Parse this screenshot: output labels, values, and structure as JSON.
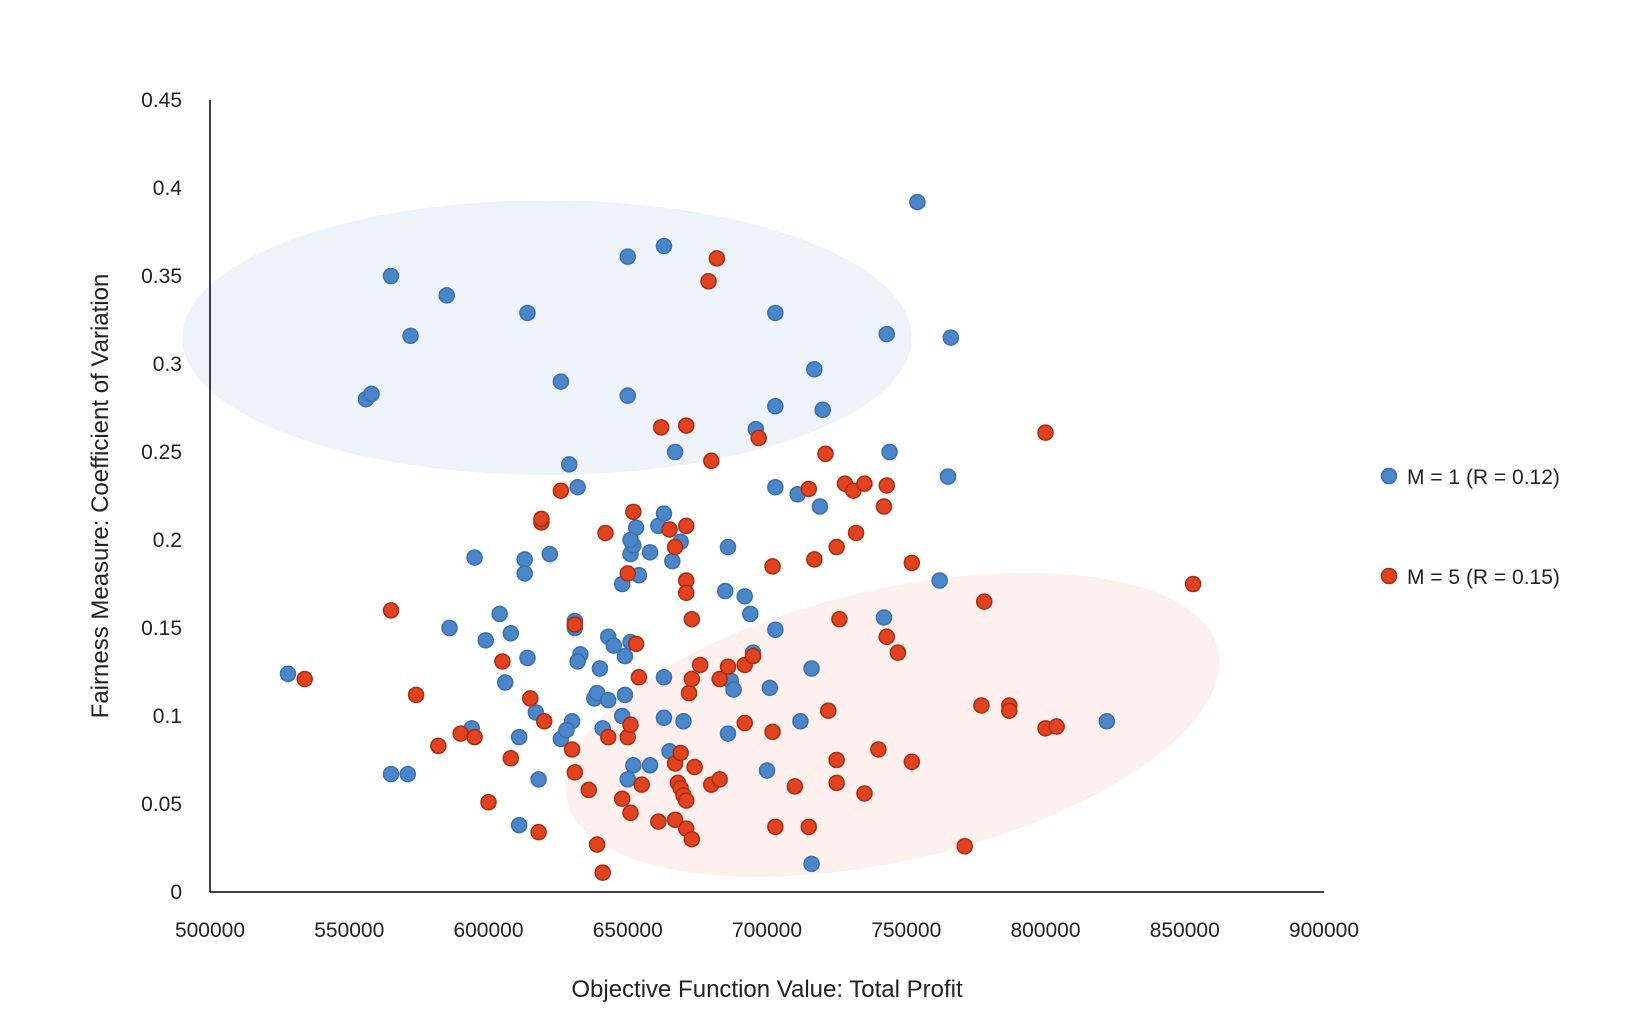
{
  "chart_data": {
    "type": "scatter",
    "title": "",
    "xlabel": "Objective Function Value: Total Profit",
    "ylabel": "Fairness Measure: Coefficient of Variation",
    "xlim": [
      500000,
      900000
    ],
    "ylim": [
      0,
      0.45
    ],
    "x_ticks": [
      500000,
      550000,
      600000,
      650000,
      700000,
      750000,
      800000,
      850000,
      900000
    ],
    "x_tick_labels": [
      "500000",
      "550000",
      "600000",
      "650000",
      "700000",
      "750000",
      "800000",
      "850000",
      "900000"
    ],
    "y_ticks": [
      0,
      0.05,
      0.1,
      0.15,
      0.2,
      0.25,
      0.3,
      0.35,
      0.4,
      0.45
    ],
    "y_tick_labels": [
      "0",
      "0.05",
      "0.1",
      "0.15",
      "0.2",
      "0.25",
      "0.3",
      "0.35",
      "0.4",
      "0.45"
    ],
    "grid": false,
    "legend_position": "right",
    "regions": [
      {
        "series": "M = 1 (R = 0.12)",
        "cx": 621000,
        "cy": 0.315,
        "rx": 131000,
        "ry": 0.078,
        "rotation_deg": 0,
        "color": "#EEF3F9"
      },
      {
        "series": "M = 5 (R = 0.15)",
        "cx": 745000,
        "cy": 0.095,
        "rx": 120000,
        "ry": 0.077,
        "rotation_deg": -13,
        "color": "#FDF0EF"
      }
    ],
    "series": [
      {
        "name": "M = 1 (R = 0.12)",
        "color": "#4A86C8",
        "edge": "#3A70AE",
        "points": [
          [
            528000,
            0.124
          ],
          [
            556000,
            0.28
          ],
          [
            558000,
            0.283
          ],
          [
            565000,
            0.35
          ],
          [
            572000,
            0.316
          ],
          [
            585000,
            0.339
          ],
          [
            614000,
            0.329
          ],
          [
            626000,
            0.29
          ],
          [
            650000,
            0.282
          ],
          [
            650000,
            0.361
          ],
          [
            663000,
            0.367
          ],
          [
            754000,
            0.392
          ],
          [
            703000,
            0.329
          ],
          [
            743000,
            0.317
          ],
          [
            766000,
            0.315
          ],
          [
            717000,
            0.297
          ],
          [
            720000,
            0.274
          ],
          [
            703000,
            0.276
          ],
          [
            696000,
            0.263
          ],
          [
            667000,
            0.25
          ],
          [
            744000,
            0.25
          ],
          [
            765000,
            0.236
          ],
          [
            629000,
            0.243
          ],
          [
            632000,
            0.23
          ],
          [
            703000,
            0.23
          ],
          [
            711000,
            0.226
          ],
          [
            719000,
            0.219
          ],
          [
            595000,
            0.19
          ],
          [
            613000,
            0.189
          ],
          [
            613000,
            0.181
          ],
          [
            622000,
            0.192
          ],
          [
            686000,
            0.196
          ],
          [
            651000,
            0.192
          ],
          [
            652000,
            0.197
          ],
          [
            653000,
            0.207
          ],
          [
            651000,
            0.2
          ],
          [
            658000,
            0.193
          ],
          [
            661000,
            0.208
          ],
          [
            663000,
            0.215
          ],
          [
            669000,
            0.199
          ],
          [
            666000,
            0.188
          ],
          [
            654000,
            0.18
          ],
          [
            648000,
            0.175
          ],
          [
            685000,
            0.171
          ],
          [
            692000,
            0.168
          ],
          [
            762000,
            0.177
          ],
          [
            604000,
            0.158
          ],
          [
            586000,
            0.15
          ],
          [
            599000,
            0.143
          ],
          [
            608000,
            0.147
          ],
          [
            631000,
            0.154
          ],
          [
            631000,
            0.15
          ],
          [
            643000,
            0.145
          ],
          [
            645000,
            0.14
          ],
          [
            651000,
            0.142
          ],
          [
            694000,
            0.158
          ],
          [
            703000,
            0.149
          ],
          [
            742000,
            0.156
          ],
          [
            614000,
            0.133
          ],
          [
            606000,
            0.119
          ],
          [
            633000,
            0.135
          ],
          [
            632000,
            0.131
          ],
          [
            640000,
            0.127
          ],
          [
            649000,
            0.134
          ],
          [
            663000,
            0.122
          ],
          [
            695000,
            0.136
          ],
          [
            687000,
            0.12
          ],
          [
            688000,
            0.115
          ],
          [
            701000,
            0.116
          ],
          [
            716000,
            0.127
          ],
          [
            594000,
            0.093
          ],
          [
            611000,
            0.088
          ],
          [
            617000,
            0.102
          ],
          [
            626000,
            0.087
          ],
          [
            630000,
            0.097
          ],
          [
            628000,
            0.092
          ],
          [
            638000,
            0.11
          ],
          [
            639000,
            0.113
          ],
          [
            643000,
            0.109
          ],
          [
            648000,
            0.1
          ],
          [
            649000,
            0.112
          ],
          [
            641000,
            0.093
          ],
          [
            663000,
            0.099
          ],
          [
            670000,
            0.097
          ],
          [
            686000,
            0.09
          ],
          [
            712000,
            0.097
          ],
          [
            822000,
            0.097
          ],
          [
            565000,
            0.067
          ],
          [
            571000,
            0.067
          ],
          [
            618000,
            0.064
          ],
          [
            650000,
            0.064
          ],
          [
            652000,
            0.072
          ],
          [
            658000,
            0.072
          ],
          [
            665000,
            0.08
          ],
          [
            700000,
            0.069
          ],
          [
            611000,
            0.038
          ],
          [
            716000,
            0.016
          ]
        ]
      },
      {
        "name": "M = 5 (R = 0.15)",
        "color": "#E1421F",
        "edge": "#A92E10",
        "points": [
          [
            534000,
            0.121
          ],
          [
            565000,
            0.16
          ],
          [
            574000,
            0.112
          ],
          [
            582000,
            0.083
          ],
          [
            590000,
            0.09
          ],
          [
            595000,
            0.088
          ],
          [
            600000,
            0.051
          ],
          [
            605000,
            0.131
          ],
          [
            608000,
            0.076
          ],
          [
            615000,
            0.11
          ],
          [
            619000,
            0.21
          ],
          [
            619000,
            0.212
          ],
          [
            620000,
            0.097
          ],
          [
            618000,
            0.034
          ],
          [
            626000,
            0.228
          ],
          [
            630000,
            0.081
          ],
          [
            631000,
            0.152
          ],
          [
            631000,
            0.068
          ],
          [
            636000,
            0.058
          ],
          [
            639000,
            0.027
          ],
          [
            641000,
            0.011
          ],
          [
            642000,
            0.204
          ],
          [
            643000,
            0.088
          ],
          [
            648000,
            0.053
          ],
          [
            650000,
            0.181
          ],
          [
            650000,
            0.088
          ],
          [
            651000,
            0.095
          ],
          [
            651000,
            0.045
          ],
          [
            652000,
            0.216
          ],
          [
            653000,
            0.141
          ],
          [
            654000,
            0.122
          ],
          [
            655000,
            0.061
          ],
          [
            661000,
            0.04
          ],
          [
            662000,
            0.264
          ],
          [
            665000,
            0.206
          ],
          [
            667000,
            0.196
          ],
          [
            667000,
            0.073
          ],
          [
            667000,
            0.041
          ],
          [
            668000,
            0.062
          ],
          [
            669000,
            0.079
          ],
          [
            669000,
            0.059
          ],
          [
            670000,
            0.055
          ],
          [
            671000,
            0.265
          ],
          [
            671000,
            0.208
          ],
          [
            671000,
            0.177
          ],
          [
            671000,
            0.17
          ],
          [
            672000,
            0.113
          ],
          [
            671000,
            0.052
          ],
          [
            671000,
            0.036
          ],
          [
            673000,
            0.155
          ],
          [
            673000,
            0.121
          ],
          [
            673000,
            0.03
          ],
          [
            674000,
            0.071
          ],
          [
            676000,
            0.129
          ],
          [
            679000,
            0.347
          ],
          [
            680000,
            0.245
          ],
          [
            680000,
            0.061
          ],
          [
            682000,
            0.36
          ],
          [
            683000,
            0.121
          ],
          [
            683000,
            0.064
          ],
          [
            686000,
            0.128
          ],
          [
            692000,
            0.129
          ],
          [
            692000,
            0.096
          ],
          [
            695000,
            0.134
          ],
          [
            697000,
            0.258
          ],
          [
            702000,
            0.185
          ],
          [
            702000,
            0.091
          ],
          [
            703000,
            0.037
          ],
          [
            710000,
            0.06
          ],
          [
            715000,
            0.229
          ],
          [
            715000,
            0.037
          ],
          [
            717000,
            0.189
          ],
          [
            721000,
            0.249
          ],
          [
            722000,
            0.103
          ],
          [
            725000,
            0.196
          ],
          [
            725000,
            0.075
          ],
          [
            725000,
            0.062
          ],
          [
            726000,
            0.155
          ],
          [
            728000,
            0.232
          ],
          [
            731000,
            0.228
          ],
          [
            732000,
            0.204
          ],
          [
            735000,
            0.232
          ],
          [
            735000,
            0.056
          ],
          [
            740000,
            0.081
          ],
          [
            742000,
            0.219
          ],
          [
            743000,
            0.145
          ],
          [
            743000,
            0.231
          ],
          [
            747000,
            0.136
          ],
          [
            752000,
            0.187
          ],
          [
            752000,
            0.074
          ],
          [
            771000,
            0.026
          ],
          [
            777000,
            0.106
          ],
          [
            778000,
            0.165
          ],
          [
            787000,
            0.106
          ],
          [
            787000,
            0.103
          ],
          [
            800000,
            0.261
          ],
          [
            800000,
            0.093
          ],
          [
            804000,
            0.094
          ],
          [
            853000,
            0.175
          ]
        ]
      }
    ]
  }
}
